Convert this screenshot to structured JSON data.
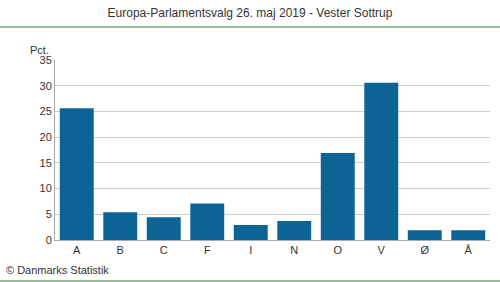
{
  "chart_data": {
    "type": "bar",
    "title": "Europa-Parlamentsvalg 26. maj 2019 - Vester Sottrup",
    "y_label": "Pct.",
    "source": "© Danmarks Statistik",
    "categories": [
      "A",
      "B",
      "C",
      "F",
      "I",
      "N",
      "O",
      "V",
      "Ø",
      "Å"
    ],
    "values": [
      25.6,
      5.4,
      4.4,
      7.1,
      2.9,
      3.7,
      16.9,
      30.6,
      1.9,
      1.9
    ],
    "color": "#0b6493",
    "ylim": [
      0,
      35
    ],
    "yticks": [
      0,
      5,
      10,
      15,
      20,
      25,
      30,
      35
    ],
    "grid": true
  }
}
